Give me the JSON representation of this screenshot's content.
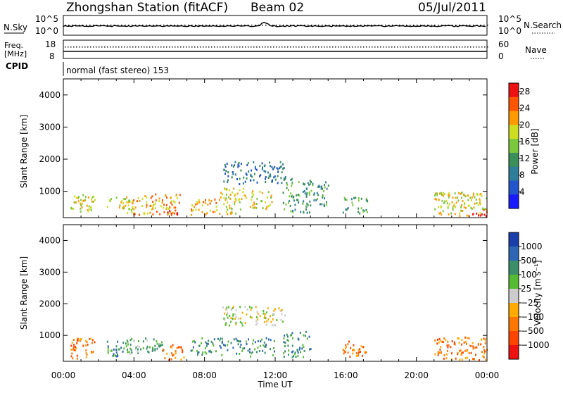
{
  "header": {
    "station": "Zhongshan Station (fitACF)",
    "beam": "Beam 02",
    "date": "05/Jul/2011"
  },
  "status": {
    "nsky_label": "N.Sky",
    "nsky_ticks": [
      "10^5",
      "10^0"
    ],
    "nsearch_label": "N.Search",
    "nsearch_ticks": [
      "10^5",
      "10^0"
    ],
    "freq_label_1": "Freq.",
    "freq_label_2": "[MHz]",
    "freq_ticks": [
      "18",
      "8"
    ],
    "nave_label": "Nave",
    "nave_ticks": [
      "60",
      "0"
    ],
    "cpid_label": "CPID",
    "cpid_text": "normal (fast stereo) 153"
  },
  "xaxis": {
    "label": "Time UT",
    "ticks": [
      "00:00",
      "04:00",
      "08:00",
      "12:00",
      "16:00",
      "20:00",
      "00:00"
    ],
    "range_hours": [
      0,
      24
    ]
  },
  "colors": {
    "power": [
      "#1a1aff",
      "#2255cc",
      "#2e7e99",
      "#3a8f5a",
      "#7cc83c",
      "#ccdd22",
      "#ff9900",
      "#ff5500",
      "#ee1111"
    ],
    "velocity": [
      "#1b3faa",
      "#2e66b3",
      "#3a8f6a",
      "#55bb33",
      "#cccccc",
      "#ffaa00",
      "#ff7700",
      "#ff4400",
      "#ee1111"
    ]
  },
  "chart_data": [
    {
      "type": "heatmap",
      "panel": "power",
      "ylabel": "Slant Range [km]",
      "yticks": [
        "1000",
        "2000",
        "3000",
        "4000"
      ],
      "ylim": [
        180,
        4500
      ],
      "colorbar_label": "Power [dB]",
      "colorbar_ticks": [
        "4",
        "8",
        "12",
        "16",
        "20",
        "24",
        "28"
      ],
      "clim": [
        0,
        30
      ],
      "patches": [
        {
          "t0": 0.4,
          "t1": 1.8,
          "r0": 300,
          "r1": 900,
          "level": 5
        },
        {
          "t0": 2.4,
          "t1": 4.0,
          "r0": 300,
          "r1": 800,
          "level": 5
        },
        {
          "t0": 3.8,
          "t1": 6.6,
          "r0": 250,
          "r1": 900,
          "level": 6
        },
        {
          "t0": 5.8,
          "t1": 6.6,
          "r0": 200,
          "r1": 400,
          "level": 8
        },
        {
          "t0": 7.2,
          "t1": 8.8,
          "r0": 250,
          "r1": 800,
          "level": 6
        },
        {
          "t0": 8.8,
          "t1": 10.2,
          "r0": 250,
          "r1": 1100,
          "level": 5
        },
        {
          "t0": 9.0,
          "t1": 12.6,
          "r0": 1200,
          "r1": 1900,
          "level": 2
        },
        {
          "t0": 10.2,
          "t1": 11.8,
          "r0": 400,
          "r1": 1000,
          "level": 5
        },
        {
          "t0": 12.4,
          "t1": 14.0,
          "r0": 300,
          "r1": 1400,
          "level": 3
        },
        {
          "t0": 14.0,
          "t1": 15.0,
          "r0": 500,
          "r1": 1300,
          "level": 3
        },
        {
          "t0": 15.8,
          "t1": 17.2,
          "r0": 300,
          "r1": 800,
          "level": 3
        },
        {
          "t0": 21.0,
          "t1": 24.0,
          "r0": 200,
          "r1": 950,
          "level": 5
        },
        {
          "t0": 23.0,
          "t1": 24.0,
          "r0": 200,
          "r1": 400,
          "level": 8
        }
      ]
    },
    {
      "type": "heatmap",
      "panel": "velocity",
      "ylabel": "Slant Range [km]",
      "yticks": [
        "1000",
        "2000",
        "3000",
        "4000"
      ],
      "ylim": [
        180,
        4500
      ],
      "colorbar_label": "Velocity [m s⁻¹]",
      "colorbar_ticks": [
        "1000",
        "500",
        "100",
        "25",
        "−25",
        "−100",
        "−500",
        "−1000"
      ],
      "patches": [
        {
          "t0": 0.4,
          "t1": 1.8,
          "r0": 250,
          "r1": 900,
          "level": 6
        },
        {
          "t0": 2.4,
          "t1": 3.5,
          "r0": 300,
          "r1": 800,
          "level": 2
        },
        {
          "t0": 3.5,
          "t1": 5.6,
          "r0": 400,
          "r1": 900,
          "level": 3
        },
        {
          "t0": 4.2,
          "t1": 5.2,
          "r0": 450,
          "r1": 700,
          "level": 3
        },
        {
          "t0": 5.6,
          "t1": 6.8,
          "r0": 200,
          "r1": 700,
          "level": 6
        },
        {
          "t0": 7.2,
          "t1": 10.0,
          "r0": 350,
          "r1": 900,
          "level": 2
        },
        {
          "t0": 9.0,
          "t1": 12.6,
          "r0": 1300,
          "r1": 1900,
          "level": 4
        },
        {
          "t0": 10.0,
          "t1": 12.0,
          "r0": 300,
          "r1": 900,
          "level": 2
        },
        {
          "t0": 12.4,
          "t1": 14.0,
          "r0": 300,
          "r1": 1100,
          "level": 2
        },
        {
          "t0": 15.8,
          "t1": 17.2,
          "r0": 300,
          "r1": 800,
          "level": 6
        },
        {
          "t0": 21.0,
          "t1": 24.0,
          "r0": 200,
          "r1": 950,
          "level": 6
        }
      ]
    }
  ]
}
